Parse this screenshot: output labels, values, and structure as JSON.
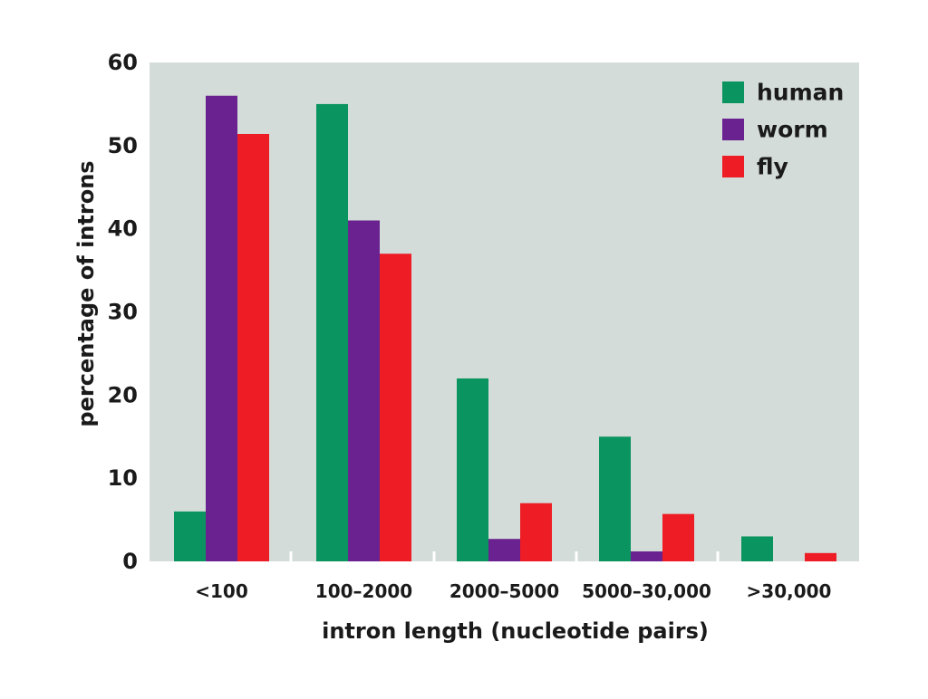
{
  "chart_data": {
    "type": "bar",
    "title": "",
    "xlabel": "intron length (nucleotide pairs)",
    "ylabel": "percentage of introns",
    "ylim": [
      0,
      60
    ],
    "yticks": [
      "0",
      "10",
      "20",
      "30",
      "40",
      "50",
      "60"
    ],
    "categories": [
      "<100",
      "100–2000",
      "2000–5000",
      "5000–30,000",
      ">30,000"
    ],
    "series": [
      {
        "name": "human",
        "color": "#0a9460",
        "values": [
          6,
          55,
          22,
          15,
          3
        ]
      },
      {
        "name": "worm",
        "color": "#6a2290",
        "values": [
          56,
          41,
          2.7,
          1.2,
          0
        ]
      },
      {
        "name": "fly",
        "color": "#ee1c25",
        "values": [
          51.4,
          37,
          7,
          5.7,
          1
        ]
      }
    ],
    "legend_position": "top-right",
    "grid": false,
    "plot_background": "#d3dcd8"
  }
}
